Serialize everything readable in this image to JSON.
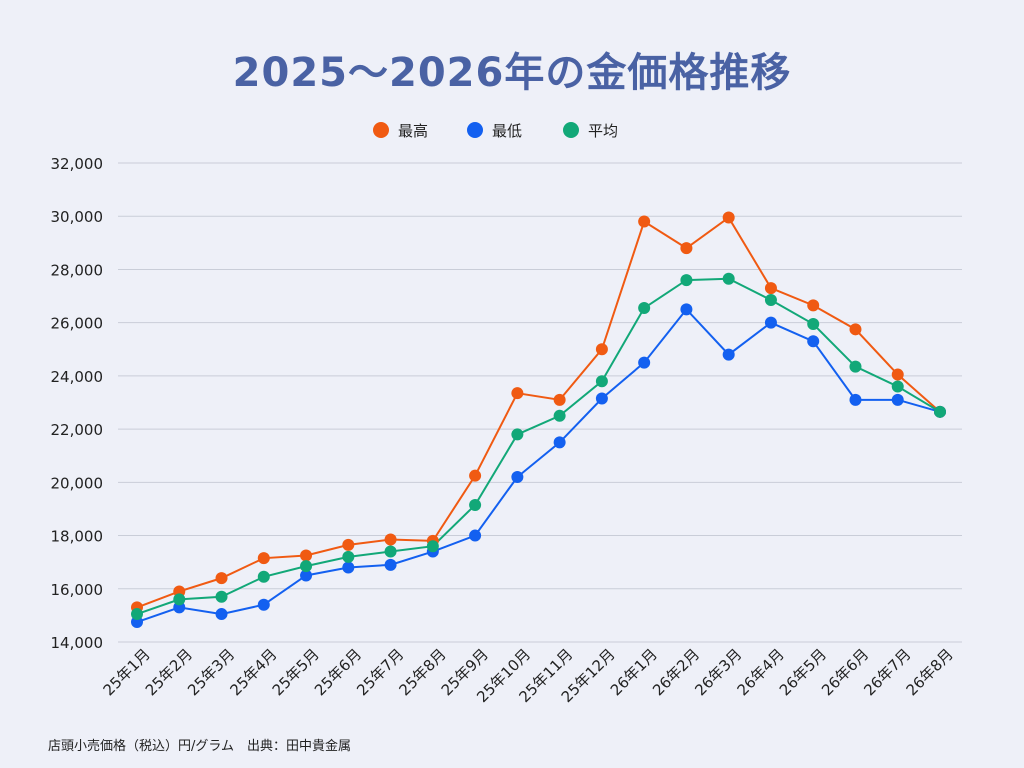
{
  "page": {
    "title": "2025～2026年の金価格推移",
    "footnote": "店頭小売価格（税込）円/グラム　出典：田中貴金属"
  },
  "chart_data": {
    "type": "line",
    "categories": [
      "25年1月",
      "25年2月",
      "25年3月",
      "25年4月",
      "25年5月",
      "25年6月",
      "25年7月",
      "25年8月",
      "25年9月",
      "25年10月",
      "25年11月",
      "25年12月",
      "26年1月",
      "26年2月",
      "26年3月",
      "26年4月",
      "26年5月",
      "26年6月",
      "26年7月",
      "26年8月"
    ],
    "series": [
      {
        "name": "最高",
        "color": "#f05a12",
        "values": [
          15300,
          15900,
          16400,
          17150,
          17250,
          17650,
          17850,
          17800,
          20250,
          23350,
          23100,
          25000,
          29800,
          28800,
          29950,
          27300,
          26650,
          25750,
          24050,
          22650
        ]
      },
      {
        "name": "最低",
        "color": "#1360f0",
        "values": [
          14750,
          15300,
          15050,
          15400,
          16500,
          16800,
          16900,
          17400,
          18000,
          20200,
          21500,
          23150,
          24500,
          26500,
          24800,
          26000,
          25300,
          23100,
          23100,
          22650
        ]
      },
      {
        "name": "平均",
        "color": "#12a878",
        "values": [
          15050,
          15600,
          15700,
          16450,
          16850,
          17200,
          17400,
          17600,
          19150,
          21800,
          22500,
          23800,
          26550,
          27600,
          27650,
          26850,
          25950,
          24350,
          23600,
          22650
        ]
      }
    ],
    "ylim": [
      14000,
      32000
    ],
    "yticks": [
      "14,000",
      "16,000",
      "18,000",
      "20,000",
      "22,000",
      "24,000",
      "26,000",
      "28,000",
      "30,000",
      "32,000"
    ],
    "grid": true,
    "legend": "top-center"
  }
}
